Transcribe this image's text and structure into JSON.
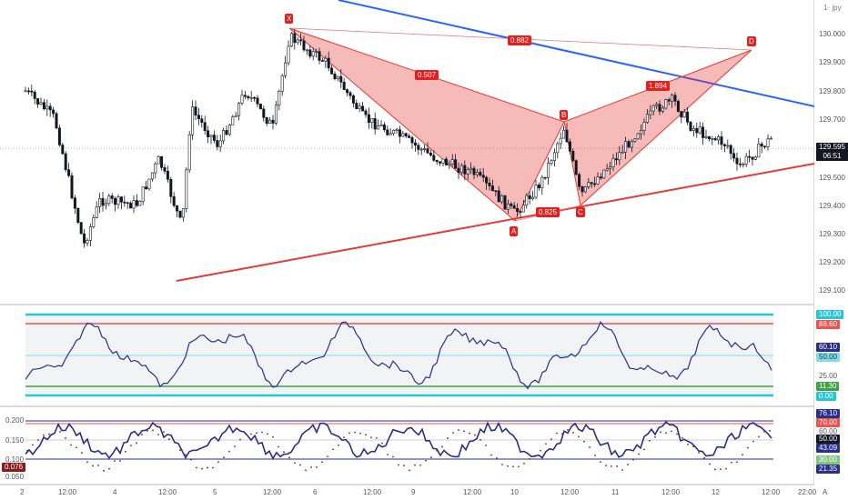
{
  "symbol_hint": "1· jpy",
  "price_axis": [
    "130.000",
    "129.900",
    "129.800",
    "129.700",
    "129.600",
    "129.500",
    "129.400",
    "129.300",
    "129.200",
    "129.100"
  ],
  "current_price": "129.595",
  "countdown": "06:51",
  "pattern_points": {
    "x": "X",
    "a": "A",
    "b": "B",
    "c": "C",
    "d": "D"
  },
  "ratios": {
    "xb": "0.507",
    "xd": "0.882",
    "ac": "0.825",
    "bd": "1.894"
  },
  "rsi_badges": {
    "upper": "100.00",
    "high": "88.60",
    "value": "60.10",
    "mid": "50.00",
    "low": "11.30",
    "zero": "0.00",
    "quarter": "25.00"
  },
  "osc_axis": [
    "0.200",
    "0.150",
    "0.100",
    "0.050"
  ],
  "osc_value_badge": "0.076",
  "osc_badges": {
    "a": "76.10",
    "b": "70.00",
    "c": "60.00",
    "d": "50.00",
    "e": "43.09",
    "f": "30.00",
    "g": "21.35"
  },
  "time_axis": [
    "2",
    "12:00",
    "4",
    "12:00",
    "5",
    "12:00",
    "6",
    "12:00",
    "9",
    "12:00",
    "10",
    "12:00",
    "11",
    "12:00",
    "12",
    "12:00",
    "22:00",
    "A"
  ],
  "colors": {
    "bull": "#131722",
    "bear": "#131722",
    "pattern": "#e61e1e",
    "trend_blue": "#2962ff",
    "trend_red": "#e53935",
    "rsi_line": "#2a2e8c"
  }
}
